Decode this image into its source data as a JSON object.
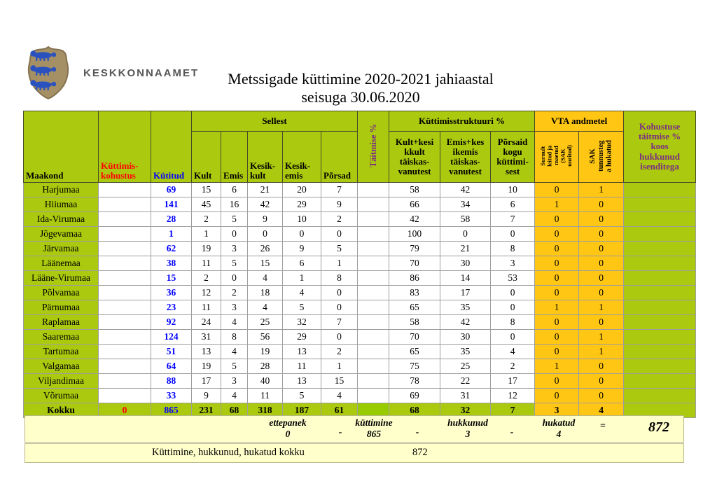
{
  "logo": {
    "org_name": "KESKKONNAAMET",
    "icon": "estonian-coat-of-arms"
  },
  "title": {
    "line1": "Metssigade küttimine 2020-2021 jahiaastal",
    "line2": "seisuga 30.06.2020"
  },
  "colors": {
    "green": "#abc90e",
    "green_bright": "#99cc00",
    "gold": "#ffc613",
    "footer_bg": "#ffffcc",
    "red_text": "#ff0000",
    "blue_text": "#0000ff",
    "purple_text": "#7b2e83"
  },
  "table": {
    "headers": {
      "maakond": "Maakond",
      "kohustus": "Küttimis-\nkohustus",
      "kutitud": "Kütitud",
      "sellest": "Sellest",
      "kult": "Kult",
      "emis": "Emis",
      "kesik_kult": "Kesik-\nkult",
      "kesik_emis": "Kesik-\nemis",
      "porsad": "Põrsad",
      "taitmise": "Täitmise %",
      "struktuur": "Küttimisstruktuuri %",
      "kult_kesikkult": "Kult+kesi\nkkult\ntäiskas-\nvanutest",
      "emis_kesikemis": "Emis+kes\nikemis\ntäiskas-\nvanutest",
      "porsaid_kogu": "Põrsaid\nkogu\nküttimi-\nsest",
      "vta": "VTA andmetel",
      "surnult": "Surnult\nleitud ja\nmaetud\n(SAK\nuuritud)",
      "sak_hukatud": "SAK\ntunnusteg\na hukatud",
      "kohustuse_koos": "Kohustuse\ntäitmise %\nkoos\nhukkunud\nisenditega"
    },
    "rows": [
      {
        "maakond": "Harjumaa",
        "kohustus": "",
        "kutitud": "69",
        "kult": "15",
        "emis": "6",
        "kesik_kult": "21",
        "kesik_emis": "20",
        "porsad": "7",
        "taitmise": "",
        "kult_pct": "58",
        "emis_pct": "42",
        "porsaid_pct": "10",
        "surnult": "0",
        "sak": "1",
        "kohustuse": ""
      },
      {
        "maakond": "Hiiumaa",
        "kohustus": "",
        "kutitud": "141",
        "kult": "45",
        "emis": "16",
        "kesik_kult": "42",
        "kesik_emis": "29",
        "porsad": "9",
        "taitmise": "",
        "kult_pct": "66",
        "emis_pct": "34",
        "porsaid_pct": "6",
        "surnult": "1",
        "sak": "0",
        "kohustuse": ""
      },
      {
        "maakond": "Ida-Virumaa",
        "kohustus": "",
        "kutitud": "28",
        "kult": "2",
        "emis": "5",
        "kesik_kult": "9",
        "kesik_emis": "10",
        "porsad": "2",
        "taitmise": "",
        "kult_pct": "42",
        "emis_pct": "58",
        "porsaid_pct": "7",
        "surnult": "0",
        "sak": "0",
        "kohustuse": ""
      },
      {
        "maakond": "Jõgevamaa",
        "kohustus": "",
        "kutitud": "1",
        "kult": "1",
        "emis": "0",
        "kesik_kult": "0",
        "kesik_emis": "0",
        "porsad": "0",
        "taitmise": "",
        "kult_pct": "100",
        "emis_pct": "0",
        "porsaid_pct": "0",
        "surnult": "0",
        "sak": "0",
        "kohustuse": ""
      },
      {
        "maakond": "Järvamaa",
        "kohustus": "",
        "kutitud": "62",
        "kult": "19",
        "emis": "3",
        "kesik_kult": "26",
        "kesik_emis": "9",
        "porsad": "5",
        "taitmise": "",
        "kult_pct": "79",
        "emis_pct": "21",
        "porsaid_pct": "8",
        "surnult": "0",
        "sak": "0",
        "kohustuse": ""
      },
      {
        "maakond": "Läänemaa",
        "kohustus": "",
        "kutitud": "38",
        "kult": "11",
        "emis": "5",
        "kesik_kult": "15",
        "kesik_emis": "6",
        "porsad": "1",
        "taitmise": "",
        "kult_pct": "70",
        "emis_pct": "30",
        "porsaid_pct": "3",
        "surnult": "0",
        "sak": "0",
        "kohustuse": ""
      },
      {
        "maakond": "Lääne-Virumaa",
        "kohustus": "",
        "kutitud": "15",
        "kult": "2",
        "emis": "0",
        "kesik_kult": "4",
        "kesik_emis": "1",
        "porsad": "8",
        "taitmise": "",
        "kult_pct": "86",
        "emis_pct": "14",
        "porsaid_pct": "53",
        "surnult": "0",
        "sak": "0",
        "kohustuse": ""
      },
      {
        "maakond": "Põlvamaa",
        "kohustus": "",
        "kutitud": "36",
        "kult": "12",
        "emis": "2",
        "kesik_kult": "18",
        "kesik_emis": "4",
        "porsad": "0",
        "taitmise": "",
        "kult_pct": "83",
        "emis_pct": "17",
        "porsaid_pct": "0",
        "surnult": "0",
        "sak": "0",
        "kohustuse": ""
      },
      {
        "maakond": "Pärnumaa",
        "kohustus": "",
        "kutitud": "23",
        "kult": "11",
        "emis": "3",
        "kesik_kult": "4",
        "kesik_emis": "5",
        "porsad": "0",
        "taitmise": "",
        "kult_pct": "65",
        "emis_pct": "35",
        "porsaid_pct": "0",
        "surnult": "1",
        "sak": "1",
        "kohustuse": ""
      },
      {
        "maakond": "Raplamaa",
        "kohustus": "",
        "kutitud": "92",
        "kult": "24",
        "emis": "4",
        "kesik_kult": "25",
        "kesik_emis": "32",
        "porsad": "7",
        "taitmise": "",
        "kult_pct": "58",
        "emis_pct": "42",
        "porsaid_pct": "8",
        "surnult": "0",
        "sak": "0",
        "kohustuse": ""
      },
      {
        "maakond": "Saaremaa",
        "kohustus": "",
        "kutitud": "124",
        "kult": "31",
        "emis": "8",
        "kesik_kult": "56",
        "kesik_emis": "29",
        "porsad": "0",
        "taitmise": "",
        "kult_pct": "70",
        "emis_pct": "30",
        "porsaid_pct": "0",
        "surnult": "0",
        "sak": "1",
        "kohustuse": ""
      },
      {
        "maakond": "Tartumaa",
        "kohustus": "",
        "kutitud": "51",
        "kult": "13",
        "emis": "4",
        "kesik_kult": "19",
        "kesik_emis": "13",
        "porsad": "2",
        "taitmise": "",
        "kult_pct": "65",
        "emis_pct": "35",
        "porsaid_pct": "4",
        "surnult": "0",
        "sak": "1",
        "kohustuse": ""
      },
      {
        "maakond": "Valgamaa",
        "kohustus": "",
        "kutitud": "64",
        "kult": "19",
        "emis": "5",
        "kesik_kult": "28",
        "kesik_emis": "11",
        "porsad": "1",
        "taitmise": "",
        "kult_pct": "75",
        "emis_pct": "25",
        "porsaid_pct": "2",
        "surnult": "1",
        "sak": "0",
        "kohustuse": ""
      },
      {
        "maakond": "Viljandimaa",
        "kohustus": "",
        "kutitud": "88",
        "kult": "17",
        "emis": "3",
        "kesik_kult": "40",
        "kesik_emis": "13",
        "porsad": "15",
        "taitmise": "",
        "kult_pct": "78",
        "emis_pct": "22",
        "porsaid_pct": "17",
        "surnult": "0",
        "sak": "0",
        "kohustuse": ""
      },
      {
        "maakond": "Võrumaa",
        "kohustus": "",
        "kutitud": "33",
        "kult": "9",
        "emis": "4",
        "kesik_kult": "11",
        "kesik_emis": "5",
        "porsad": "4",
        "taitmise": "",
        "kult_pct": "69",
        "emis_pct": "31",
        "porsaid_pct": "12",
        "surnult": "0",
        "sak": "0",
        "kohustuse": ""
      }
    ],
    "total_row": {
      "maakond": "Kokku",
      "kohustus": "0",
      "kutitud": "865",
      "kult": "231",
      "emis": "68",
      "kesik_kult": "318",
      "kesik_emis": "187",
      "porsad": "61",
      "taitmise": "",
      "kult_pct": "68",
      "emis_pct": "32",
      "porsaid_pct": "7",
      "surnult": "3",
      "sak": "4",
      "kohustuse": ""
    }
  },
  "footer": {
    "items": [
      {
        "label": "ettepanek",
        "value": "0"
      },
      {
        "label": "küttimine",
        "value": "865"
      },
      {
        "label": "hukkunud",
        "value": "3"
      },
      {
        "label": "hukatud",
        "value": "4"
      }
    ],
    "operators": [
      "-",
      "-",
      "-",
      "="
    ],
    "result": "872",
    "total_label": "Küttimine, hukkunud, hukatud kokku",
    "total_value": "872"
  }
}
